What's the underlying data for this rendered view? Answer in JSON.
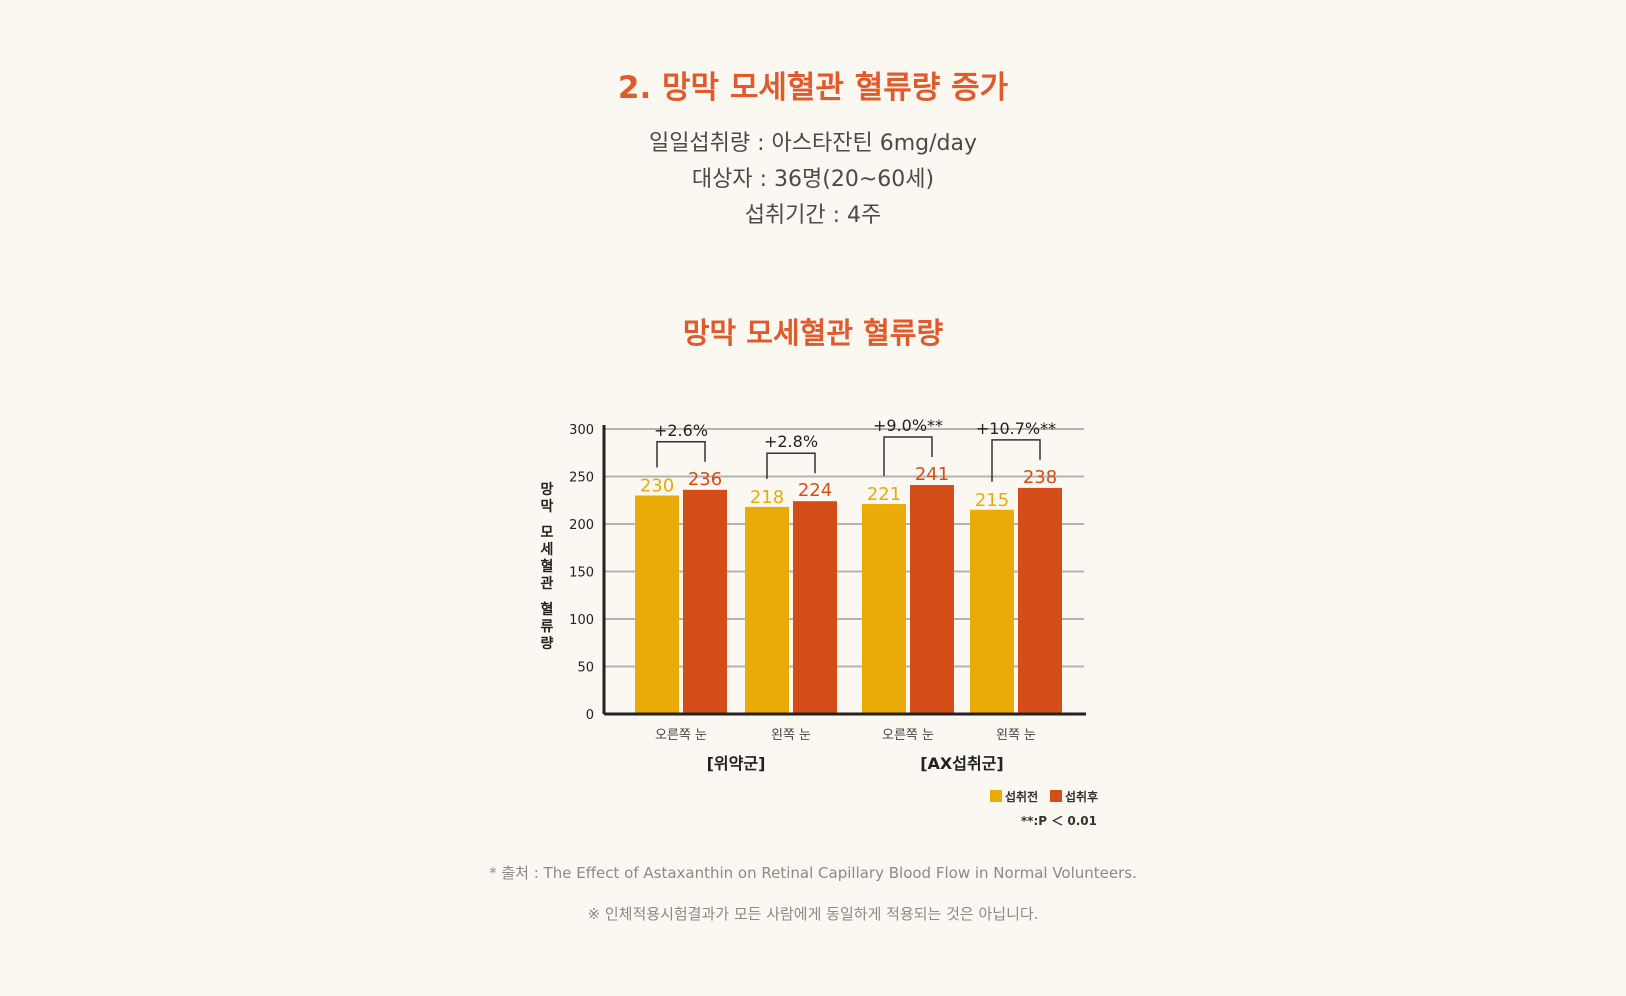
{
  "colors": {
    "accent": "#e05a2c",
    "before": "#e8ab07",
    "after": "#d44d18",
    "grid": "#b3b3b3",
    "axis": "#222222"
  },
  "heading": "2. 망막 모세혈관 혈류량 증가",
  "info": {
    "line1": "일일섭취량 : 아스타잔틴 6mg/day",
    "line2": "대상자 : 36명(20~60세)",
    "line3": "섭취기간 : 4주"
  },
  "chart_data": {
    "type": "bar",
    "title": "망막 모세혈관 혈류량",
    "ylabel": "망막 모세혈관 혈류량",
    "ylim": [
      0,
      300
    ],
    "yticks": [
      0,
      50,
      100,
      150,
      200,
      250,
      300
    ],
    "grid": true,
    "categories": [
      "오른쪽 눈",
      "왼쪽 눈",
      "오른쪽 눈",
      "왼쪽 눈"
    ],
    "groups": [
      {
        "label": "[위약군]",
        "span": [
          0,
          1
        ]
      },
      {
        "label": "[AX섭취군]",
        "span": [
          2,
          3
        ]
      }
    ],
    "series": [
      {
        "name": "섭취전",
        "values": [
          230,
          218,
          221,
          215
        ]
      },
      {
        "name": "섭취후",
        "values": [
          236,
          224,
          241,
          238
        ]
      }
    ],
    "annotations": [
      "+2.6%",
      "+2.8%",
      "+9.0%**",
      "+10.7%**"
    ],
    "note": "**:P ＜ 0.01",
    "legend": "bottom-right"
  },
  "footer": {
    "source": "* 출처 : The Effect of Astaxanthin on Retinal Capillary Blood Flow in Normal Volunteers.",
    "disclaimer": "※ 인체적용시험결과가 모든 사람에게 동일하게 적용되는 것은 아닙니다."
  }
}
